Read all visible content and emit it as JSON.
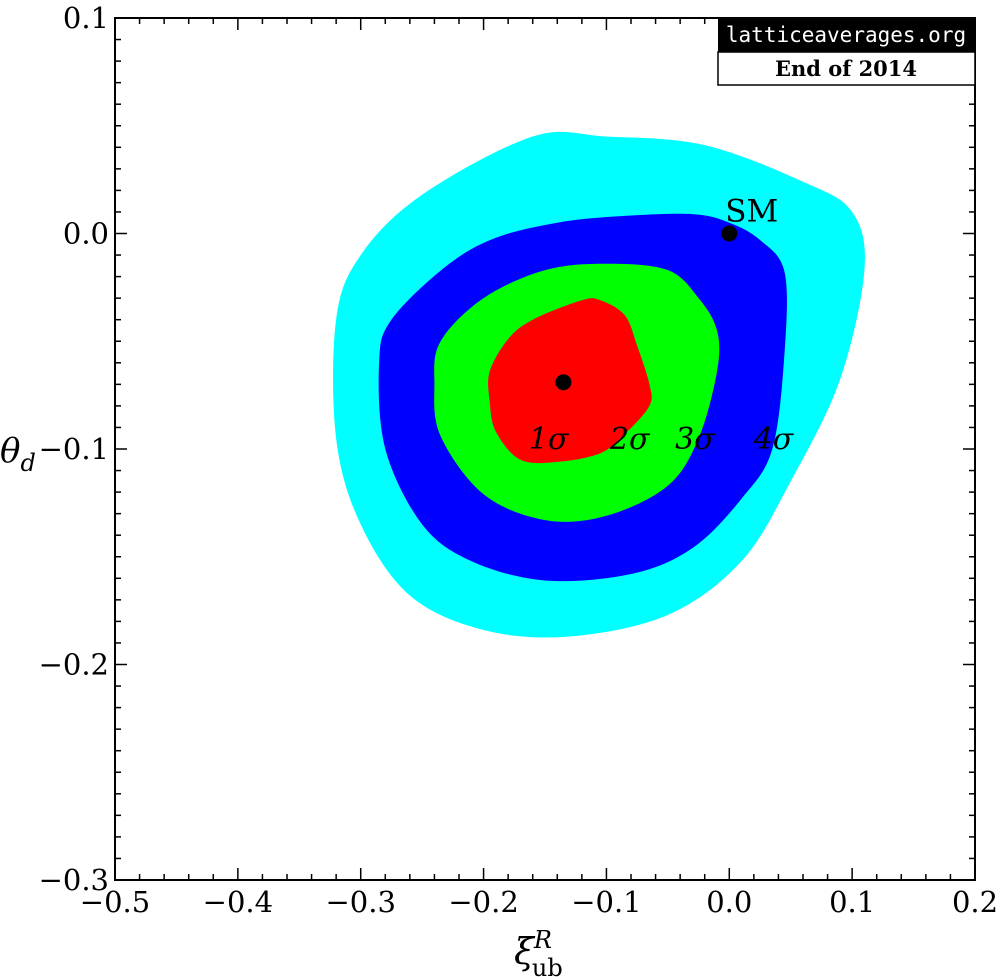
{
  "chart_data": {
    "type": "contour",
    "xlabel": "ξ",
    "xlabel_super": "R",
    "xlabel_sub": "ub",
    "ylabel": "θ",
    "ylabel_sub": "d",
    "xlim": [
      -0.5,
      0.2
    ],
    "ylim": [
      -0.3,
      0.1
    ],
    "x_ticks": [
      -0.5,
      -0.4,
      -0.3,
      -0.2,
      -0.1,
      0.0,
      0.1,
      0.2
    ],
    "x_tick_labels": [
      "−0.5",
      "−0.4",
      "−0.3",
      "−0.2",
      "−0.1",
      "0.0",
      "0.1",
      "0.2"
    ],
    "y_ticks": [
      0.1,
      0.0,
      -0.1,
      -0.2,
      -0.3
    ],
    "y_tick_labels": [
      "0.1",
      "0.0",
      "−0.1",
      "−0.2",
      "−0.3"
    ],
    "grid": false,
    "regions": [
      {
        "label": "4σ",
        "color": "#00ffff",
        "contour": [
          [
            -0.16,
            0.045
          ],
          [
            -0.1,
            0.045
          ],
          [
            -0.02,
            0.041
          ],
          [
            0.06,
            0.024
          ],
          [
            0.1,
            0.01
          ],
          [
            0.11,
            -0.017
          ],
          [
            0.09,
            -0.068
          ],
          [
            0.05,
            -0.115
          ],
          [
            0.01,
            -0.152
          ],
          [
            -0.05,
            -0.177
          ],
          [
            -0.13,
            -0.187
          ],
          [
            -0.2,
            -0.184
          ],
          [
            -0.26,
            -0.168
          ],
          [
            -0.3,
            -0.135
          ],
          [
            -0.32,
            -0.095
          ],
          [
            -0.32,
            -0.04
          ],
          [
            -0.3,
            -0.01
          ],
          [
            -0.25,
            0.018
          ]
        ]
      },
      {
        "label": "3σ",
        "color": "#0000ff",
        "contour": [
          [
            -0.14,
            0.005
          ],
          [
            -0.09,
            0.008
          ],
          [
            -0.03,
            0.009
          ],
          [
            0.0,
            0.005
          ],
          [
            0.025,
            -0.003
          ],
          [
            0.045,
            -0.018
          ],
          [
            0.045,
            -0.055
          ],
          [
            0.035,
            -0.1
          ],
          [
            0.01,
            -0.123
          ],
          [
            -0.03,
            -0.146
          ],
          [
            -0.08,
            -0.158
          ],
          [
            -0.15,
            -0.161
          ],
          [
            -0.21,
            -0.152
          ],
          [
            -0.25,
            -0.135
          ],
          [
            -0.28,
            -0.1
          ],
          [
            -0.285,
            -0.06
          ],
          [
            -0.275,
            -0.04
          ],
          [
            -0.23,
            -0.015
          ],
          [
            -0.19,
            -0.002
          ]
        ]
      },
      {
        "label": "2σ",
        "color": "#00ff00",
        "contour": [
          [
            -0.15,
            -0.017
          ],
          [
            -0.1,
            -0.014
          ],
          [
            -0.05,
            -0.017
          ],
          [
            -0.025,
            -0.03
          ],
          [
            -0.01,
            -0.045
          ],
          [
            -0.01,
            -0.064
          ],
          [
            -0.025,
            -0.095
          ],
          [
            -0.05,
            -0.117
          ],
          [
            -0.1,
            -0.131
          ],
          [
            -0.15,
            -0.133
          ],
          [
            -0.2,
            -0.121
          ],
          [
            -0.235,
            -0.094
          ],
          [
            -0.24,
            -0.07
          ],
          [
            -0.235,
            -0.05
          ],
          [
            -0.2,
            -0.03
          ]
        ]
      },
      {
        "label": "1σ",
        "color": "#ff0000",
        "contour": [
          [
            -0.12,
            -0.031
          ],
          [
            -0.105,
            -0.031
          ],
          [
            -0.085,
            -0.038
          ],
          [
            -0.075,
            -0.052
          ],
          [
            -0.065,
            -0.07
          ],
          [
            -0.065,
            -0.08
          ],
          [
            -0.085,
            -0.093
          ],
          [
            -0.105,
            -0.102
          ],
          [
            -0.14,
            -0.106
          ],
          [
            -0.17,
            -0.105
          ],
          [
            -0.19,
            -0.092
          ],
          [
            -0.195,
            -0.078
          ],
          [
            -0.195,
            -0.064
          ],
          [
            -0.18,
            -0.049
          ],
          [
            -0.16,
            -0.04
          ]
        ]
      }
    ],
    "points": [
      {
        "name": "best-fit",
        "x": -0.135,
        "y": -0.069
      },
      {
        "name": "SM",
        "label": "SM",
        "x": 0.0,
        "y": 0.0
      }
    ],
    "sigma_labels": [
      {
        "text": "1σ",
        "x": -0.147,
        "y": -0.095
      },
      {
        "text": "2σ",
        "x": -0.081,
        "y": -0.095
      },
      {
        "text": "3σ",
        "x": -0.028,
        "y": -0.095
      },
      {
        "text": "4σ",
        "x": 0.036,
        "y": -0.095
      }
    ]
  },
  "badge": {
    "site": "latticeaverages.org",
    "date": "End of 2014"
  }
}
